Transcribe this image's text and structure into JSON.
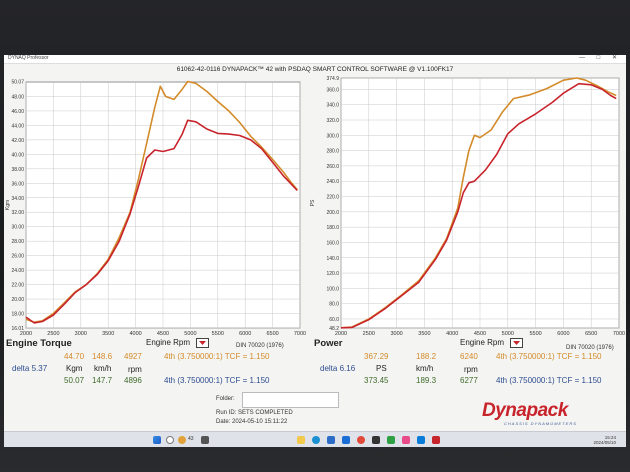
{
  "window": {
    "app_title": "DYNAQ Professor",
    "controls": "— □ ✕",
    "header": "61062-42-0116 DYNAPACK™ 42 with PSDAQ SMART CONTROL SOFTWARE @ V1.100FK17"
  },
  "torque_panel": {
    "title": "Engine Torque",
    "x_label": "Engine Rpm",
    "din": "DIN 70020 (1976)",
    "row1": {
      "v1": "44.70",
      "v2": "148.6",
      "v3": "4927",
      "gear": "4th (3.750000:1) TCF = 1.150"
    },
    "row2": {
      "delta_label": "delta 5.37",
      "unit1": "Kgm",
      "unit2": "km/h",
      "unit3": "rpm"
    },
    "row3": {
      "v1": "50.07",
      "v2": "147.7",
      "v3": "4896",
      "gear": "4th (3.750000:1) TCF = 1.150"
    }
  },
  "power_panel": {
    "title": "Power",
    "x_label": "Engine Rpm",
    "din": "DIN 70020 (1976)",
    "row1": {
      "v1": "367.29",
      "v2": "188.2",
      "v3": "6240",
      "gear": "4th (3.750000:1) TCF = 1.150"
    },
    "row2": {
      "delta_label": "delta 6.16",
      "unit1": "PS",
      "unit2": "km/h",
      "unit3": "rpm"
    },
    "row3": {
      "v1": "373.45",
      "v2": "189.3",
      "v3": "6277",
      "gear": "4th (3.750000:1) TCF = 1.150"
    }
  },
  "footer": {
    "folder_label": "Folder:",
    "run_id": "Run ID:  SETS COMPLETED",
    "date": "Date:  2024-05-10 15:11:22"
  },
  "logo": {
    "text": "Dynapack",
    "tagline": "CHASSIS DYNAMOMETERS"
  },
  "taskbar": {
    "weather": "43",
    "time": "15:24",
    "date": "2024/05/10"
  },
  "chart_data": [
    {
      "type": "line",
      "title": "Engine Torque",
      "xlabel": "Engine Rpm",
      "ylabel": "Kgm",
      "xlim": [
        2000,
        7000
      ],
      "ylim": [
        16.0,
        50.0
      ],
      "x_ticks": [
        2000,
        2500,
        3000,
        3500,
        4000,
        4500,
        5000,
        5500,
        6000,
        6500,
        7000
      ],
      "y_ticks": [
        "16.01",
        "18.00",
        "20.00",
        "22.00",
        "24.00",
        "26.00",
        "28.00",
        "30.00",
        "32.00",
        "34.00",
        "36.00",
        "38.00",
        "40.00",
        "42.00",
        "44.00",
        "46.00",
        "48.00",
        "50.07"
      ],
      "y_tick_values": [
        16.01,
        18,
        20,
        22,
        24,
        26,
        28,
        30,
        32,
        34,
        36,
        38,
        40,
        42,
        44,
        46,
        48,
        50.07
      ],
      "grid": true,
      "series": [
        {
          "color": "#d38b2a",
          "x": [
            2000,
            2150,
            2300,
            2500,
            2700,
            2900,
            3100,
            3300,
            3500,
            3700,
            3900,
            4050,
            4200,
            4350,
            4450,
            4550,
            4700,
            4850,
            4950,
            5100,
            5300,
            5500,
            5700,
            5900,
            6100,
            6300,
            6500,
            6700,
            6850,
            6950
          ],
          "y": [
            17.2,
            16.8,
            17.0,
            18.0,
            19.5,
            21.0,
            22.0,
            23.5,
            25.5,
            28.5,
            32.0,
            36.5,
            41.5,
            46.5,
            49.4,
            48.0,
            47.6,
            49.0,
            50.07,
            49.8,
            48.7,
            47.3,
            46.0,
            44.4,
            42.5,
            41.0,
            39.3,
            37.5,
            36.0,
            35.1
          ]
        },
        {
          "color": "#c8242c",
          "x": [
            2000,
            2150,
            2300,
            2500,
            2700,
            2900,
            3100,
            3300,
            3500,
            3700,
            3900,
            4050,
            4200,
            4350,
            4500,
            4700,
            4850,
            4950,
            5100,
            5300,
            5500,
            5700,
            5900,
            6100,
            6300,
            6500,
            6700,
            6850,
            6950
          ],
          "y": [
            17.5,
            16.7,
            16.9,
            17.8,
            19.3,
            20.9,
            22.0,
            23.4,
            25.3,
            28.0,
            31.8,
            35.5,
            39.5,
            40.6,
            40.4,
            40.8,
            42.8,
            44.7,
            44.5,
            43.5,
            42.9,
            42.8,
            42.6,
            42.0,
            40.8,
            38.9,
            37.0,
            35.8,
            35.0
          ]
        }
      ]
    },
    {
      "type": "line",
      "title": "Power",
      "xlabel": "Engine Rpm",
      "ylabel": "PS",
      "xlim": [
        2000,
        7000
      ],
      "ylim": [
        48.2,
        374.9
      ],
      "x_ticks": [
        2000,
        2500,
        3000,
        3500,
        4000,
        4500,
        5000,
        5500,
        6000,
        6500,
        7000
      ],
      "y_ticks": [
        "48.2",
        "60.0",
        "80.0",
        "100.0",
        "120.0",
        "140.0",
        "160.0",
        "180.0",
        "200.0",
        "220.0",
        "240.0",
        "260.0",
        "280.0",
        "300.0",
        "320.0",
        "340.0",
        "360.0",
        "374.9"
      ],
      "y_tick_values": [
        48.2,
        60,
        80,
        100,
        120,
        140,
        160,
        180,
        200,
        220,
        240,
        260,
        280,
        300,
        320,
        340,
        360,
        374.9
      ],
      "grid": true,
      "series": [
        {
          "color": "#d38b2a",
          "x": [
            2000,
            2200,
            2500,
            2800,
            3100,
            3400,
            3700,
            3900,
            4100,
            4200,
            4300,
            4400,
            4500,
            4700,
            4900,
            5100,
            5400,
            5700,
            6000,
            6240,
            6400,
            6600,
            6800,
            6950
          ],
          "y": [
            48.5,
            49.5,
            60.0,
            75.0,
            92.0,
            110.0,
            140.0,
            165.0,
            205.0,
            245.0,
            280.0,
            300.0,
            297.0,
            307.0,
            330.0,
            348.0,
            353.0,
            361.0,
            372.0,
            374.9,
            372.0,
            365.0,
            357.0,
            352.0
          ]
        },
        {
          "color": "#c8242c",
          "x": [
            2000,
            2200,
            2500,
            2800,
            3100,
            3400,
            3700,
            3900,
            4100,
            4200,
            4300,
            4400,
            4600,
            4800,
            5000,
            5200,
            5500,
            5800,
            6000,
            6277,
            6500,
            6700,
            6850,
            6950
          ],
          "y": [
            48.5,
            49.0,
            59.0,
            74.0,
            91.0,
            108.0,
            138.0,
            163.0,
            200.0,
            225.0,
            238.0,
            240.0,
            255.0,
            275.0,
            302.0,
            315.0,
            328.0,
            343.0,
            355.0,
            367.5,
            366.0,
            360.0,
            352.0,
            348.0
          ]
        }
      ]
    }
  ]
}
